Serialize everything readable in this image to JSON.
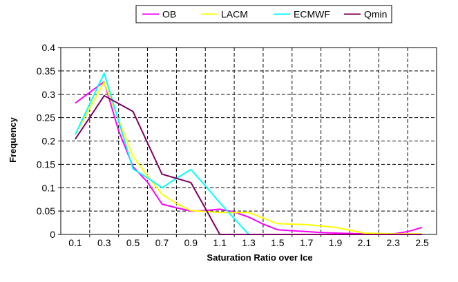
{
  "chart_data": {
    "type": "line",
    "title": "",
    "xlabel": "Saturation Ratio over Ice",
    "ylabel": "Frequency",
    "x": [
      0.1,
      0.2,
      0.3,
      0.4,
      0.5,
      0.6,
      0.7,
      0.8,
      0.9,
      1.0,
      1.1,
      1.2,
      1.3,
      1.4,
      1.5,
      1.6,
      1.7,
      1.8,
      1.9,
      2.0,
      2.1,
      2.2,
      2.3,
      2.4,
      2.5
    ],
    "x_tick_labels": [
      "0.1",
      "0.3",
      "0.5",
      "0.7",
      "0.9",
      "1.1",
      "1.3",
      "1.5",
      "1.7",
      "1.9",
      "2.1",
      "2.3",
      "2.5"
    ],
    "ylim": [
      0,
      0.4
    ],
    "y_tick_labels": [
      "0",
      "0.05",
      "0.1",
      "0.15",
      "0.2",
      "0.25",
      "0.3",
      "0.35",
      "0.4"
    ],
    "grid": true,
    "legend_position": "top",
    "series": [
      {
        "name": "OB",
        "color": "#ff00ff",
        "values": [
          0.281,
          0.304,
          0.327,
          0.222,
          0.145,
          0.112,
          0.065,
          0.057,
          0.05,
          0.051,
          0.054,
          0.048,
          0.037,
          0.022,
          0.01,
          0.008,
          0.006,
          0.004,
          0.003,
          0.002,
          0.001,
          0.001,
          0.001,
          0.006,
          0.015
        ]
      },
      {
        "name": "LACM",
        "color": "#ffff00",
        "values": [
          0.215,
          0.27,
          0.326,
          0.245,
          0.167,
          0.125,
          0.086,
          0.066,
          0.051,
          0.049,
          0.047,
          0.047,
          0.047,
          0.035,
          0.023,
          0.022,
          0.021,
          0.018,
          0.015,
          0.009,
          0.003,
          0.002,
          0.001,
          0.001,
          0.001
        ]
      },
      {
        "name": "ECMWF",
        "color": "#00ffff",
        "values": [
          0.214,
          0.279,
          0.345,
          0.243,
          0.14,
          0.121,
          0.1,
          0.12,
          0.139,
          0.104,
          0.068,
          0.034,
          0,
          0,
          0,
          0,
          0,
          0,
          0,
          0,
          0,
          0,
          0,
          0,
          0
        ]
      },
      {
        "name": "Qmin",
        "color": "#800060",
        "values": [
          0.204,
          0.25,
          0.297,
          0.28,
          0.263,
          0.196,
          0.129,
          0.12,
          0.111,
          0.056,
          0,
          0,
          0,
          0,
          0,
          0,
          0,
          0,
          0,
          0,
          0,
          0,
          0,
          0,
          0
        ]
      }
    ]
  }
}
